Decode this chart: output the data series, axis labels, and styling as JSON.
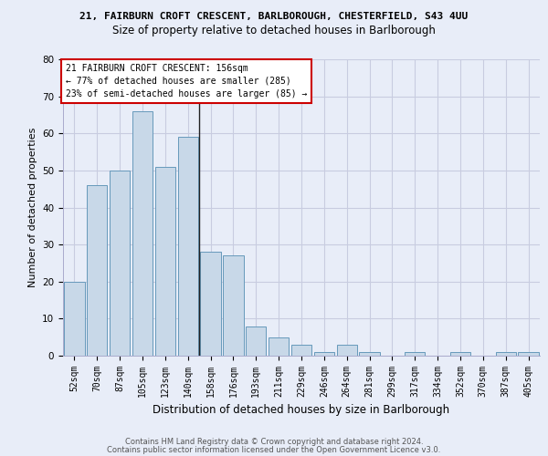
{
  "title_line1": "21, FAIRBURN CROFT CRESCENT, BARLBOROUGH, CHESTERFIELD, S43 4UU",
  "title_line2": "Size of property relative to detached houses in Barlborough",
  "xlabel": "Distribution of detached houses by size in Barlborough",
  "ylabel": "Number of detached properties",
  "categories": [
    "52sqm",
    "70sqm",
    "87sqm",
    "105sqm",
    "123sqm",
    "140sqm",
    "158sqm",
    "176sqm",
    "193sqm",
    "211sqm",
    "229sqm",
    "246sqm",
    "264sqm",
    "281sqm",
    "299sqm",
    "317sqm",
    "334sqm",
    "352sqm",
    "370sqm",
    "387sqm",
    "405sqm"
  ],
  "values": [
    20,
    46,
    50,
    66,
    51,
    59,
    28,
    27,
    8,
    5,
    3,
    1,
    3,
    1,
    0,
    1,
    0,
    1,
    0,
    1,
    1
  ],
  "bar_color": "#c8d8e8",
  "bar_edge_color": "#6699bb",
  "annotation_text": "21 FAIRBURN CROFT CRESCENT: 156sqm\n← 77% of detached houses are smaller (285)\n23% of semi-detached houses are larger (85) →",
  "annotation_box_color": "#ffffff",
  "annotation_box_edge_color": "#cc0000",
  "vline_x": 5.5,
  "ylim": [
    0,
    80
  ],
  "yticks": [
    0,
    10,
    20,
    30,
    40,
    50,
    60,
    70,
    80
  ],
  "grid_color": "#c8cce0",
  "background_color": "#e8edf8",
  "footer_line1": "Contains HM Land Registry data © Crown copyright and database right 2024.",
  "footer_line2": "Contains public sector information licensed under the Open Government Licence v3.0."
}
